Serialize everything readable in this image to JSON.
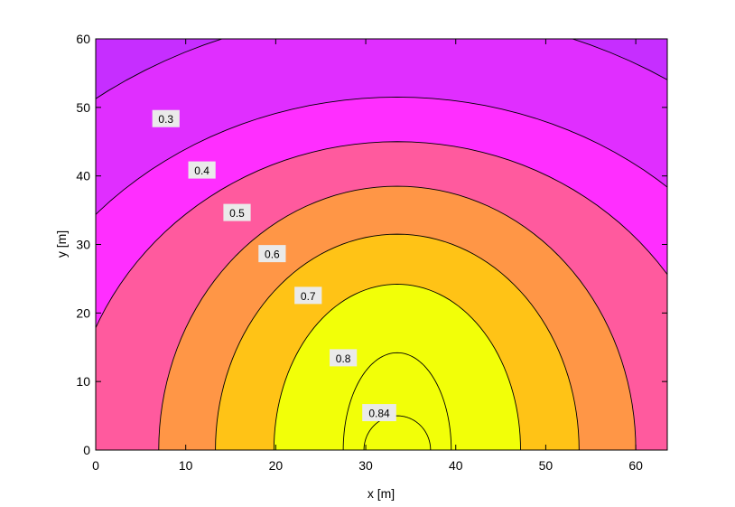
{
  "chart_data": {
    "type": "contour",
    "title": "",
    "xlabel": "x [m]",
    "ylabel": "y [m]",
    "xlim": [
      0,
      63.5
    ],
    "ylim": [
      0,
      60
    ],
    "xticks": [
      0,
      10,
      20,
      30,
      40,
      50,
      60
    ],
    "yticks": [
      0,
      10,
      20,
      30,
      40,
      50,
      60
    ],
    "grid": false,
    "source_center": [
      33.5,
      0
    ],
    "levels": [
      {
        "label": "",
        "value": 0.2,
        "bottom_halfwidth": 70,
        "height": 80,
        "fill": "#a82cff"
      },
      {
        "label": "0.3",
        "value": 0.3,
        "bottom_halfwidth": 56,
        "height": 64,
        "fill": "#c62eff"
      },
      {
        "label": "0.4",
        "value": 0.4,
        "bottom_halfwidth": 45,
        "height": 51.5,
        "fill": "#e02eff"
      },
      {
        "label": "0.5",
        "value": 0.5,
        "bottom_halfwidth": 36.5,
        "height": 45,
        "fill": "#ff2eff"
      },
      {
        "label": "0.6",
        "value": 0.6,
        "bottom_halfwidth": 26.5,
        "height": 38.5,
        "fill": "#ff5a9e"
      },
      {
        "label": "0.7",
        "value": 0.7,
        "bottom_halfwidth": 20.2,
        "height": 31.5,
        "fill": "#ff9646"
      },
      {
        "label": "0.8",
        "value": 0.8,
        "bottom_halfwidth": 13.7,
        "height": 24.2,
        "fill": "#ffc316"
      },
      {
        "label": "0.84",
        "value": 0.84,
        "bottom_halfwidth": 6,
        "height": 14.2,
        "fill": "#f2ff08"
      },
      {
        "label": "",
        "value": 0.85,
        "bottom_halfwidth": 3.7,
        "height": 5,
        "fill": "#f2ff08"
      }
    ],
    "contour_labels": [
      {
        "label": "0.3",
        "x": 7.8,
        "y": 48.3
      },
      {
        "label": "0.4",
        "x": 11.8,
        "y": 40.8
      },
      {
        "label": "0.5",
        "x": 15.7,
        "y": 34.6
      },
      {
        "label": "0.6",
        "x": 19.6,
        "y": 28.6
      },
      {
        "label": "0.7",
        "x": 23.6,
        "y": 22.5
      },
      {
        "label": "0.8",
        "x": 27.5,
        "y": 13.4
      },
      {
        "label": "0.84",
        "x": 31.5,
        "y": 5.4
      }
    ]
  }
}
